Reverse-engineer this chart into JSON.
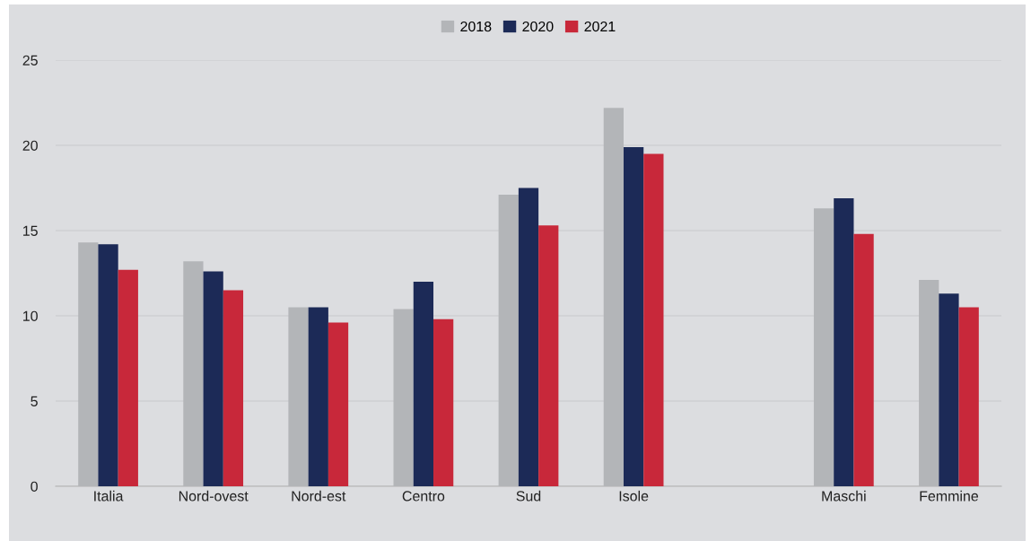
{
  "chart_data": {
    "type": "bar",
    "categories": [
      "Italia",
      "Nord-ovest",
      "Nord-est",
      "Centro",
      "Sud",
      "Isole",
      null,
      "Maschi",
      "Femmine"
    ],
    "series": [
      {
        "name": "2018",
        "color": "#b3b5b8",
        "values": [
          14.3,
          13.2,
          10.5,
          10.4,
          17.1,
          22.2,
          null,
          16.3,
          12.1
        ]
      },
      {
        "name": "2020",
        "color": "#1c2a57",
        "values": [
          14.2,
          12.6,
          10.5,
          12.0,
          17.5,
          19.9,
          null,
          16.9,
          11.3
        ]
      },
      {
        "name": "2021",
        "color": "#c8283a",
        "values": [
          12.7,
          11.5,
          9.6,
          9.8,
          15.3,
          19.5,
          null,
          14.8,
          10.5
        ]
      }
    ],
    "ylim": [
      0,
      25
    ],
    "yticks": [
      0,
      5,
      10,
      15,
      20,
      25
    ],
    "grid": "y",
    "legend": "top"
  }
}
